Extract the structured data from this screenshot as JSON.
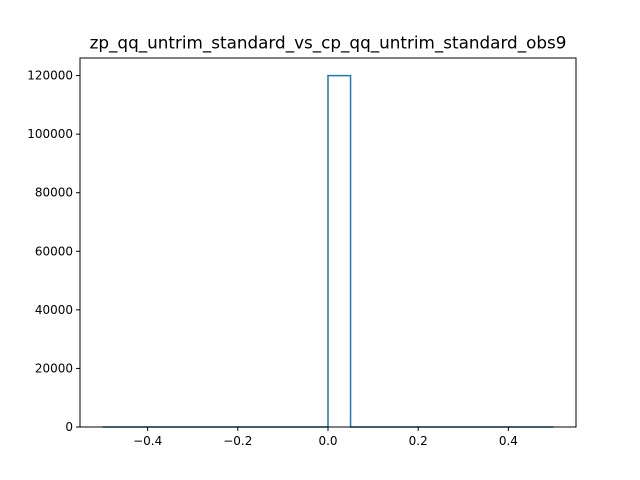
{
  "chart_data": {
    "type": "bar",
    "title": "zp_qq_untrim_standard_vs_cp_qq_untrim_standard_obs9",
    "xlabel": "",
    "ylabel": "",
    "histtype": "step",
    "bin_edges": [
      -0.5,
      -0.45,
      -0.4,
      -0.35,
      -0.3,
      -0.25,
      -0.2,
      -0.15,
      -0.1,
      -0.05,
      0.0,
      0.05,
      0.1,
      0.15,
      0.2,
      0.25,
      0.3,
      0.35,
      0.4,
      0.45,
      0.5
    ],
    "values": [
      0,
      0,
      0,
      0,
      0,
      0,
      0,
      0,
      0,
      0,
      120000,
      0,
      0,
      0,
      0,
      0,
      0,
      0,
      0,
      0
    ],
    "xlim": [
      -0.55,
      0.55
    ],
    "ylim": [
      0,
      126000
    ],
    "x_ticks": [
      -0.4,
      -0.2,
      0.0,
      0.2,
      0.4
    ],
    "x_tick_labels": [
      "−0.4",
      "−0.2",
      "0.0",
      "0.2",
      "0.4"
    ],
    "y_ticks": [
      0,
      20000,
      40000,
      60000,
      80000,
      100000,
      120000
    ],
    "y_tick_labels": [
      "0",
      "20000",
      "40000",
      "60000",
      "80000",
      "100000",
      "120000"
    ],
    "grid": false,
    "legend": "none",
    "colors": {
      "line": "#1f77b4",
      "axes": "#000000",
      "background": "#ffffff"
    }
  }
}
